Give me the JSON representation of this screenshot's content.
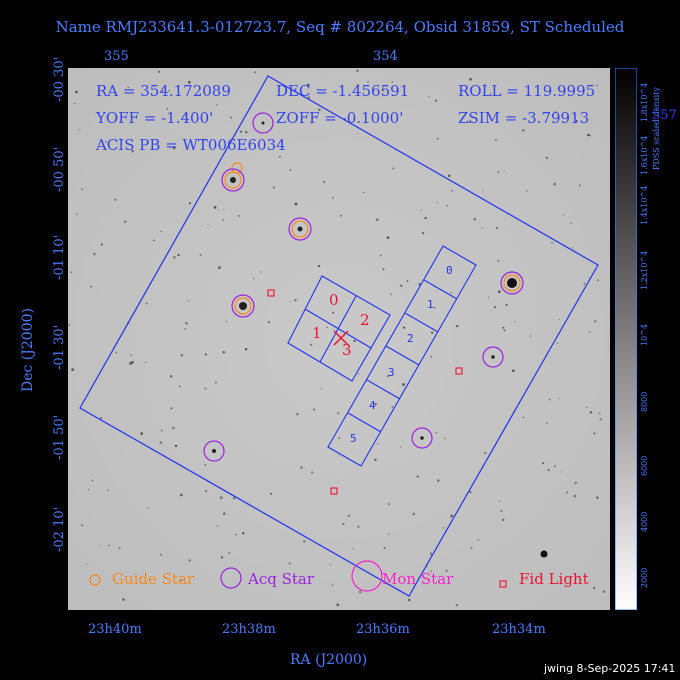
{
  "title": "Name RMJ233641.3-012723.7, Seq # 802264, Obsid 31859, ST Scheduled",
  "info": {
    "ra": "RA = 354.172089",
    "dec": "DEC = -1.456591",
    "roll": "ROLL = 119.9995",
    "yoff": "YOFF =  -1.400'",
    "zoff": "ZOFF = -0.1000'",
    "zsim": "ZSIM = -3.79913",
    "acis": "ACIS PB = WT006E6034"
  },
  "top_ticks": [
    "355",
    "354"
  ],
  "x_ticks": [
    "23h40m",
    "23h38m",
    "23h36m",
    "23h34m"
  ],
  "y_ticks": [
    "-00 30'",
    "-00 50'",
    "-01 10'",
    "-01 30'",
    "-01 50'",
    "-02 10'"
  ],
  "xlabel": "RA (J2000)",
  "ylabel": "Dec (J2000)",
  "colorbar": {
    "label": "PDSS scaled density",
    "ticks": [
      "2000",
      "4000",
      "6000",
      "8000",
      "10^4",
      "1.2x10^4",
      "1.4x10^4",
      "1.6x10^4",
      "1.8x10^4"
    ],
    "corner_text": "557"
  },
  "chips": {
    "i_array": [
      "0",
      "1",
      "2",
      "3"
    ],
    "s_array": [
      "0",
      "1",
      "2",
      "3",
      "4",
      "5"
    ]
  },
  "legend": {
    "guide": "Guide Star",
    "acq": "Acq Star",
    "mon": "Mon Star",
    "fid": "Fid Light"
  },
  "footer": "jwing  8-Sep-2025 17:41",
  "colors": {
    "background": "#000000",
    "axis": "#4f7bff",
    "field_outline": "#2233ee",
    "guide_star": "#ff8a1a",
    "acq_star": "#9a22e0",
    "mon_star": "#ff22cc",
    "fid_light": "#ee1133",
    "target": "#ee1133"
  }
}
